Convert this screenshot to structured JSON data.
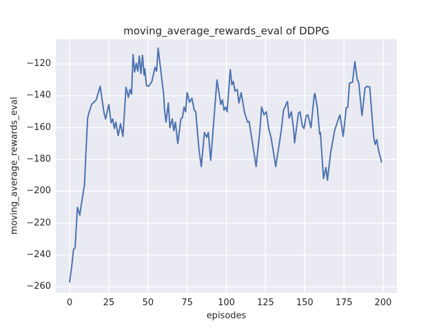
{
  "title": "moving_average_rewards_eval of DDPG",
  "xlabel": "episodes",
  "ylabel": "moving_average_rewards_eval",
  "chart_data": {
    "type": "line",
    "title": "moving_average_rewards_eval of DDPG",
    "xlabel": "episodes",
    "ylabel": "moving_average_rewards_eval",
    "xlim": [
      -8.8,
      208.8
    ],
    "ylim": [
      -263.8,
      -104.4
    ],
    "x_ticks": [
      0,
      25,
      50,
      75,
      100,
      125,
      150,
      175,
      200
    ],
    "y_ticks": [
      -120,
      -140,
      -160,
      -180,
      -200,
      -220,
      -240,
      -260
    ],
    "grid": true,
    "legend": "none",
    "colors": {
      "line": "#4c72b0",
      "plot_background": "#eaeaf2",
      "grid": "#ffffff",
      "text": "#262626",
      "figure_background": "#ffffff"
    },
    "series": [
      {
        "name": "moving_average_rewards_eval",
        "points": [
          [
            0,
            -257
          ],
          [
            1.5,
            -246
          ],
          [
            2.5,
            -236.5
          ],
          [
            3.5,
            -235.5
          ],
          [
            5,
            -210
          ],
          [
            6.5,
            -215
          ],
          [
            7.5,
            -208
          ],
          [
            9.5,
            -196
          ],
          [
            10.5,
            -174
          ],
          [
            11.5,
            -154
          ],
          [
            12.5,
            -150
          ],
          [
            14,
            -145.5
          ],
          [
            17,
            -142.5
          ],
          [
            19.5,
            -134
          ],
          [
            21,
            -144.5
          ],
          [
            22,
            -151
          ],
          [
            23,
            -154.5
          ],
          [
            25,
            -145.5
          ],
          [
            26.5,
            -157
          ],
          [
            27.5,
            -154.5
          ],
          [
            28.5,
            -160.5
          ],
          [
            29.5,
            -156.5
          ],
          [
            31,
            -165
          ],
          [
            32.5,
            -157.5
          ],
          [
            34,
            -165.5
          ],
          [
            36,
            -134.5
          ],
          [
            37.5,
            -141
          ],
          [
            38.5,
            -136
          ],
          [
            39.5,
            -139
          ],
          [
            40.5,
            -114
          ],
          [
            41.5,
            -125
          ],
          [
            42.5,
            -119.5
          ],
          [
            43.5,
            -124.5
          ],
          [
            44.5,
            -115
          ],
          [
            45.5,
            -126
          ],
          [
            46.5,
            -114.5
          ],
          [
            47.5,
            -127
          ],
          [
            48,
            -123
          ],
          [
            49,
            -133.5
          ],
          [
            50.5,
            -134
          ],
          [
            52.5,
            -131
          ],
          [
            54.5,
            -122
          ],
          [
            55.5,
            -124.5
          ],
          [
            56.5,
            -110
          ],
          [
            57.5,
            -118.5
          ],
          [
            58,
            -122.5
          ],
          [
            59,
            -131
          ],
          [
            60,
            -139
          ],
          [
            60.5,
            -148
          ],
          [
            61.5,
            -156.5
          ],
          [
            63,
            -144.5
          ],
          [
            64,
            -160
          ],
          [
            65.5,
            -154.5
          ],
          [
            66.5,
            -162
          ],
          [
            67.5,
            -156.5
          ],
          [
            69,
            -170
          ],
          [
            71,
            -154.5
          ],
          [
            72,
            -153.5
          ],
          [
            73,
            -147
          ],
          [
            74,
            -150
          ],
          [
            75,
            -138
          ],
          [
            76.5,
            -144
          ],
          [
            78,
            -141.5
          ],
          [
            79.5,
            -149
          ],
          [
            80.5,
            -150
          ],
          [
            82.5,
            -173.5
          ],
          [
            84,
            -184.5
          ],
          [
            86,
            -163
          ],
          [
            87.5,
            -166
          ],
          [
            88.5,
            -163
          ],
          [
            90,
            -180.5
          ],
          [
            94,
            -130
          ],
          [
            96.5,
            -145.5
          ],
          [
            97.5,
            -142.5
          ],
          [
            98.5,
            -149
          ],
          [
            99.5,
            -147
          ],
          [
            100.5,
            -150
          ],
          [
            102.5,
            -123.5
          ],
          [
            103.5,
            -133
          ],
          [
            104.5,
            -131
          ],
          [
            105.5,
            -137
          ],
          [
            107,
            -136
          ],
          [
            108,
            -144.5
          ],
          [
            109.5,
            -138
          ],
          [
            111.5,
            -150
          ],
          [
            113.5,
            -156.5
          ],
          [
            114.5,
            -156
          ],
          [
            117.5,
            -175
          ],
          [
            119,
            -184.5
          ],
          [
            121.5,
            -160.5
          ],
          [
            122.5,
            -147
          ],
          [
            124,
            -152
          ],
          [
            125.5,
            -150
          ],
          [
            127,
            -160.5
          ],
          [
            128.5,
            -166
          ],
          [
            130,
            -175
          ],
          [
            131.5,
            -184.5
          ],
          [
            135,
            -162
          ],
          [
            136.5,
            -149
          ],
          [
            139,
            -143.5
          ],
          [
            140,
            -154
          ],
          [
            141.5,
            -150
          ],
          [
            143,
            -162
          ],
          [
            143.5,
            -169.5
          ],
          [
            146,
            -151
          ],
          [
            147,
            -150
          ],
          [
            148.5,
            -159
          ],
          [
            149.5,
            -160.5
          ],
          [
            151,
            -152.5
          ],
          [
            152,
            -152
          ],
          [
            154,
            -160
          ],
          [
            156,
            -140
          ],
          [
            156.5,
            -138.5
          ],
          [
            158,
            -147
          ],
          [
            159.5,
            -164
          ],
          [
            160,
            -163
          ],
          [
            162,
            -192
          ],
          [
            163.5,
            -185
          ],
          [
            164.5,
            -193
          ],
          [
            166.5,
            -176
          ],
          [
            169,
            -162
          ],
          [
            171.5,
            -154.5
          ],
          [
            172.5,
            -152
          ],
          [
            174.5,
            -165.5
          ],
          [
            176.5,
            -147.5
          ],
          [
            177.5,
            -147
          ],
          [
            178.5,
            -132
          ],
          [
            180.5,
            -131.5
          ],
          [
            182,
            -118.5
          ],
          [
            183.5,
            -129.5
          ],
          [
            184.5,
            -132
          ],
          [
            186.5,
            -152.5
          ],
          [
            188.5,
            -135
          ],
          [
            190,
            -134
          ],
          [
            191.5,
            -134.5
          ],
          [
            194,
            -166
          ],
          [
            195,
            -170.5
          ],
          [
            196,
            -167.5
          ],
          [
            197,
            -174
          ],
          [
            199,
            -181.5
          ]
        ]
      }
    ]
  }
}
